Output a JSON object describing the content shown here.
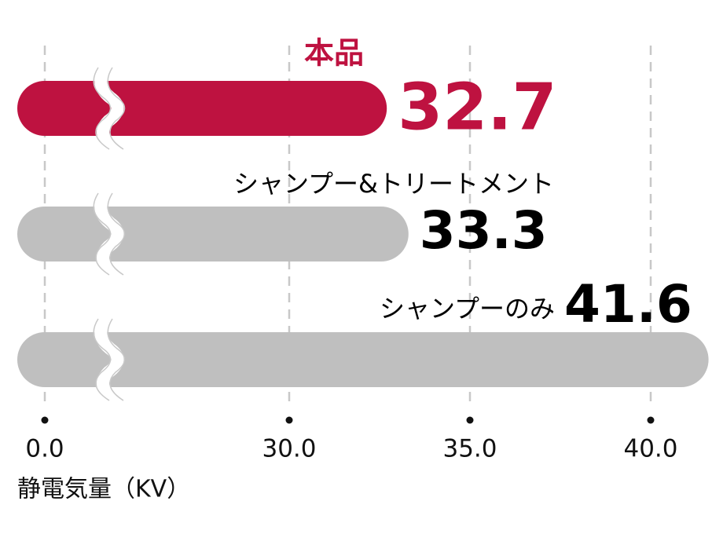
{
  "chart_data": {
    "type": "bar",
    "orientation": "horizontal",
    "categories": [
      "本品",
      "シャンプー&トリートメント",
      "シャンプーのみ"
    ],
    "values": [
      32.7,
      33.3,
      41.6
    ],
    "colors": [
      "#be1240",
      "#bfbfbf",
      "#bfbfbf"
    ],
    "value_label_colors": [
      "#be1240",
      "#000000",
      "#000000"
    ],
    "xlim": [
      0,
      42
    ],
    "axis_break": [
      0,
      30
    ],
    "xticks": [
      {
        "value": 0,
        "label": "0.0"
      },
      {
        "value": 30,
        "label": "30.0"
      },
      {
        "value": 35,
        "label": "35.0"
      },
      {
        "value": 40,
        "label": "40.0"
      }
    ],
    "xlabel": "静電気量（KV）",
    "grid": true
  }
}
